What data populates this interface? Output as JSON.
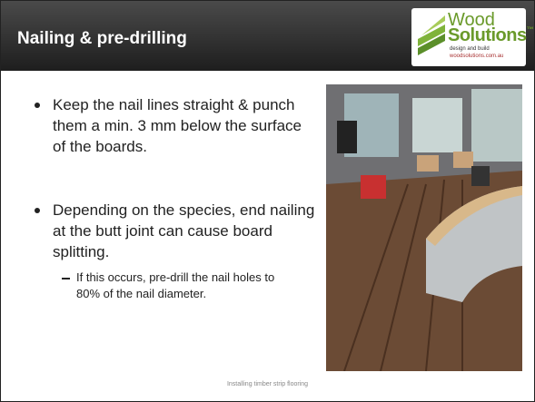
{
  "header": {
    "title": "Nailing & pre-drilling",
    "logo": {
      "brand_top": "Wood",
      "brand_bottom": "Solutions",
      "trademark": "™",
      "tagline": "design and build",
      "url": "woodsolutions.com.au"
    }
  },
  "bullets": [
    {
      "text": "Keep the nail lines straight & punch them a min. 3 mm below the surface of the boards."
    },
    {
      "text": "Depending on the species, end nailing at the butt joint can cause board splitting.",
      "sub": [
        "If this occurs, pre-drill the nail holes to 80% of the nail diameter."
      ]
    }
  ],
  "footer": {
    "text": "Installing timber strip flooring"
  }
}
